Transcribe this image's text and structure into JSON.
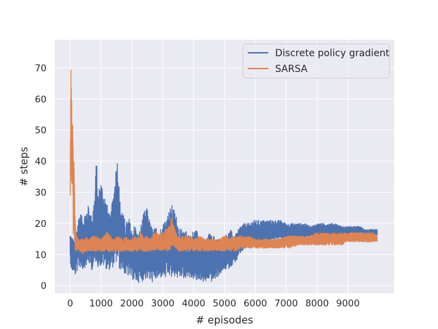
{
  "chart_data": {
    "type": "line",
    "title": "",
    "xlabel": "# episodes",
    "ylabel": "# steps",
    "xlim": [
      -500,
      10500
    ],
    "ylim": [
      -2.5,
      79
    ],
    "x_ticks": [
      0,
      1000,
      2000,
      3000,
      4000,
      5000,
      6000,
      7000,
      8000,
      9000
    ],
    "y_ticks": [
      0,
      10,
      20,
      30,
      40,
      50,
      60,
      70
    ],
    "grid": true,
    "legend_position": "top-right",
    "background": "#eaeaf2",
    "series": [
      {
        "name": "Discrete policy gradient",
        "color": "#4c72b0",
        "x": [
          0,
          50,
          100,
          150,
          200,
          300,
          400,
          500,
          600,
          700,
          800,
          850,
          900,
          1000,
          1100,
          1200,
          1300,
          1400,
          1500,
          1550,
          1600,
          1700,
          1800,
          1900,
          2000,
          2100,
          2200,
          2300,
          2400,
          2500,
          2600,
          2700,
          2800,
          2900,
          3000,
          3100,
          3200,
          3300,
          3400,
          3500,
          3600,
          3700,
          3800,
          3900,
          4000,
          4100,
          4200,
          4300,
          4400,
          4500,
          4600,
          4700,
          4800,
          4900,
          5000,
          5100,
          5200,
          5300,
          5400,
          5500,
          5600,
          5700,
          5800,
          5900,
          6000,
          6200,
          6400,
          6600,
          6800,
          7000,
          7200,
          7400,
          7600,
          7800,
          8000,
          8200,
          8400,
          8600,
          8800,
          9000,
          9200,
          9400,
          9600,
          9800,
          9950
        ],
        "high": [
          17,
          16,
          15,
          14,
          18,
          24,
          22,
          24,
          26,
          22,
          30,
          42,
          30,
          34,
          30,
          26,
          22,
          30,
          40,
          42,
          28,
          24,
          20,
          22,
          18,
          20,
          16,
          20,
          24,
          25,
          20,
          18,
          19,
          18,
          20,
          22,
          24,
          26,
          24,
          20,
          18,
          17,
          18,
          16,
          18,
          18,
          16,
          15,
          14,
          17,
          16,
          16,
          15,
          14,
          16,
          17,
          18,
          16,
          17,
          19,
          20,
          20,
          20,
          21,
          21,
          21,
          21,
          21,
          21,
          20,
          20,
          20,
          20,
          19,
          20,
          20,
          20,
          20,
          19,
          19,
          19,
          19,
          18,
          18,
          18
        ],
        "low": [
          8,
          4,
          5,
          3,
          4,
          6,
          5,
          6,
          7,
          5,
          6,
          8,
          6,
          6,
          6,
          5,
          5,
          6,
          7,
          7,
          5,
          5,
          3,
          3,
          2,
          1,
          1,
          1,
          2,
          2,
          1,
          1,
          2,
          2,
          3,
          2,
          3,
          2,
          3,
          2,
          3,
          2,
          3,
          2,
          2,
          1,
          2,
          1,
          1,
          2,
          1,
          2,
          3,
          4,
          5,
          5,
          6,
          7,
          8,
          10,
          11,
          12,
          12,
          13,
          13,
          13,
          14,
          15,
          15,
          15,
          15,
          15,
          15,
          16,
          15,
          16,
          16,
          16,
          16,
          16,
          16,
          16,
          16,
          16,
          16
        ]
      },
      {
        "name": "SARSA",
        "color": "#dd8452",
        "x": [
          0,
          20,
          40,
          60,
          80,
          100,
          130,
          160,
          200,
          300,
          400,
          500,
          600,
          700,
          800,
          900,
          1000,
          1100,
          1200,
          1300,
          1400,
          1500,
          1600,
          1700,
          1800,
          1900,
          2000,
          2100,
          2200,
          2300,
          2400,
          2500,
          2600,
          2700,
          2800,
          2900,
          3000,
          3100,
          3200,
          3300,
          3400,
          3500,
          3600,
          3700,
          3800,
          3900,
          4000,
          4200,
          4400,
          4600,
          4800,
          5000,
          5200,
          5400,
          5600,
          5800,
          6000,
          6200,
          6400,
          6600,
          6800,
          7000,
          7200,
          7400,
          7600,
          7800,
          8000,
          8200,
          8400,
          8600,
          8800,
          9000,
          9200,
          9400,
          9600,
          9800,
          9950
        ],
        "high": [
          30,
          76,
          74,
          56,
          52,
          42,
          40,
          22,
          16,
          15,
          15,
          16,
          15,
          16,
          16,
          16,
          15,
          16,
          18,
          16,
          15,
          16,
          16,
          15,
          16,
          15,
          15,
          16,
          16,
          17,
          16,
          16,
          15,
          17,
          18,
          17,
          17,
          18,
          20,
          22,
          18,
          16,
          16,
          16,
          16,
          16,
          15,
          16,
          15,
          15,
          15,
          16,
          16,
          16,
          16,
          16,
          15,
          15,
          15,
          15,
          15,
          16,
          16,
          16,
          16,
          16,
          17,
          17,
          17,
          17,
          17,
          17,
          17,
          17,
          17,
          17,
          16
        ],
        "low": [
          26,
          38,
          28,
          30,
          30,
          16,
          14,
          11,
          11,
          11,
          10,
          11,
          11,
          11,
          11,
          11,
          11,
          11,
          11,
          11,
          11,
          11,
          11,
          11,
          11,
          11,
          11,
          11,
          11,
          11,
          11,
          11,
          11,
          11,
          11,
          11,
          11,
          11,
          11,
          12,
          12,
          11,
          11,
          11,
          11,
          11,
          11,
          11,
          11,
          11,
          11,
          11,
          11,
          11,
          12,
          12,
          12,
          12,
          12,
          12,
          12,
          12,
          12,
          13,
          13,
          13,
          13,
          13,
          13,
          13,
          13,
          14,
          14,
          14,
          14,
          14,
          14
        ]
      }
    ]
  }
}
